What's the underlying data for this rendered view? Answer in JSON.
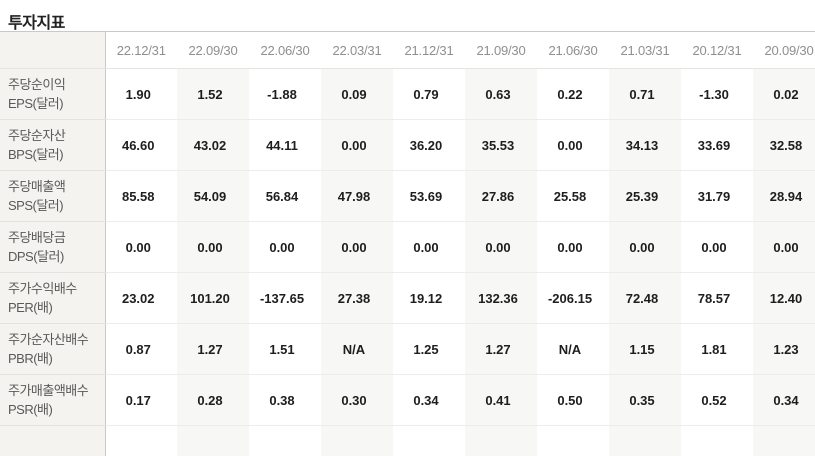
{
  "page": {
    "title": "투자지표"
  },
  "table": {
    "columns": [
      "22.12/31",
      "22.09/30",
      "22.06/30",
      "22.03/31",
      "21.12/31",
      "21.09/30",
      "21.06/30",
      "21.03/31",
      "20.12/31",
      "20.09/30"
    ],
    "rows": [
      {
        "name": "주당순이익",
        "code": "EPS(달러)",
        "values": [
          "1.90",
          "1.52",
          "-1.88",
          "0.09",
          "0.79",
          "0.63",
          "0.22",
          "0.71",
          "-1.30",
          "0.02"
        ]
      },
      {
        "name": "주당순자산",
        "code": "BPS(달러)",
        "values": [
          "46.60",
          "43.02",
          "44.11",
          "0.00",
          "36.20",
          "35.53",
          "0.00",
          "34.13",
          "33.69",
          "32.58"
        ]
      },
      {
        "name": "주당매출액",
        "code": "SPS(달러)",
        "values": [
          "85.58",
          "54.09",
          "56.84",
          "47.98",
          "53.69",
          "27.86",
          "25.58",
          "25.39",
          "31.79",
          "28.94"
        ]
      },
      {
        "name": "주당배당금",
        "code": "DPS(달러)",
        "values": [
          "0.00",
          "0.00",
          "0.00",
          "0.00",
          "0.00",
          "0.00",
          "0.00",
          "0.00",
          "0.00",
          "0.00"
        ]
      },
      {
        "name": "주가수익배수",
        "code": "PER(배)",
        "values": [
          "23.02",
          "101.20",
          "-137.65",
          "27.38",
          "19.12",
          "132.36",
          "-206.15",
          "72.48",
          "78.57",
          "12.40"
        ]
      },
      {
        "name": "주가순자산배수",
        "code": "PBR(배)",
        "values": [
          "0.87",
          "1.27",
          "1.51",
          "N/A",
          "1.25",
          "1.27",
          "N/A",
          "1.15",
          "1.81",
          "1.23"
        ]
      },
      {
        "name": "주가매출액배수",
        "code": "PSR(배)",
        "values": [
          "0.17",
          "0.28",
          "0.38",
          "0.30",
          "0.34",
          "0.41",
          "0.50",
          "0.35",
          "0.52",
          "0.34"
        ]
      }
    ]
  },
  "colors": {
    "label_column_bg": "#f4f3ef",
    "stripe_column_bg": "#f7f7f6",
    "label_divider": "#c8c8c8",
    "table_top_border": "#c9c9c9",
    "row_border": "#ececec",
    "header_text": "#8f8f8f",
    "value_text": "#1e1e1e",
    "label_text": "#595959",
    "title_text": "#222222"
  }
}
